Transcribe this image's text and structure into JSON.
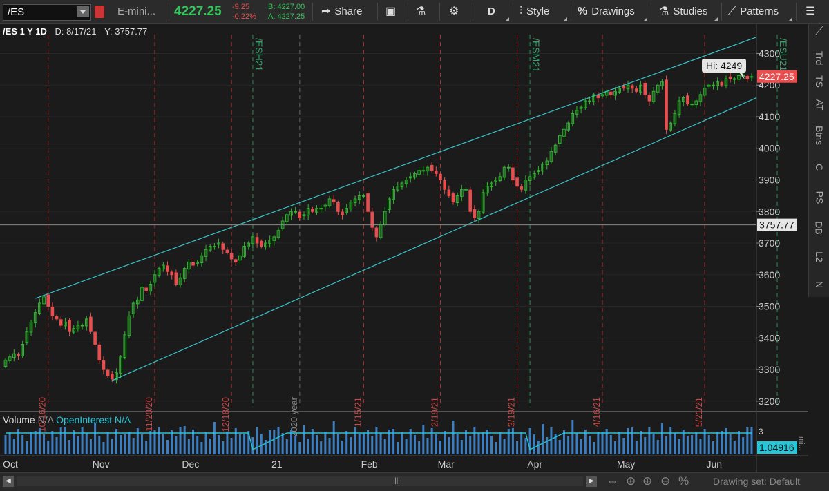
{
  "toolbar": {
    "symbol": "/ES",
    "description": "E-mini...",
    "last_price": "4227.25",
    "change": "-9.25",
    "change_pct": "-0.22%",
    "bid": "B: 4227.00",
    "ask": "A: 4227.25",
    "share_label": "Share",
    "period_label": "D",
    "style_label": "Style",
    "drawings_label": "Drawings",
    "studies_label": "Studies",
    "patterns_label": "Patterns"
  },
  "chart_header": {
    "title": "/ES 1 Y 1D",
    "date": "D: 8/17/21",
    "value": "Y: 3757.77"
  },
  "colors": {
    "up": "#2eb82e",
    "down": "#e84e4e",
    "channel": "#3ac3c7",
    "price_tag": "#e84e4e",
    "volume": "#3b7ec2",
    "open_interest": "#25c6d8"
  },
  "chart_data": {
    "type": "candlestick",
    "y_ticks": [
      "3200",
      "3300",
      "3400",
      "3500",
      "3600",
      "3700",
      "3800",
      "3900",
      "4000",
      "4100",
      "4200",
      "4300"
    ],
    "ylim": [
      3180,
      4360
    ],
    "x_labels": [
      "Oct",
      "Nov",
      "Dec",
      "21",
      "Feb",
      "Mar",
      "Apr",
      "May",
      "Jun"
    ],
    "date_labels": [
      "10/16/20",
      "11/20/20",
      "12/18/20",
      "1/15/21",
      "2/19/21",
      "3/19/21",
      "4/16/21",
      "5/21/21"
    ],
    "expiry_labels": [
      "/ESH21",
      "/ESM21",
      "/ESU21"
    ],
    "year_label": "2020 year",
    "crosshair_value": "3757.77",
    "hi_label": "Hi: 4249",
    "last_price_tag": "4227.25",
    "oi_value": "1.04916",
    "lower_axis_top": "3",
    "lower_axis_note": "mi...",
    "closes": [
      3330,
      3340,
      3350,
      3345,
      3380,
      3420,
      3450,
      3480,
      3510,
      3530,
      3500,
      3470,
      3460,
      3440,
      3450,
      3420,
      3430,
      3440,
      3440,
      3460,
      3420,
      3380,
      3330,
      3300,
      3280,
      3270,
      3290,
      3340,
      3410,
      3470,
      3510,
      3520,
      3560,
      3550,
      3570,
      3600,
      3620,
      3630,
      3610,
      3600,
      3570,
      3590,
      3620,
      3640,
      3630,
      3640,
      3660,
      3680,
      3690,
      3690,
      3700,
      3680,
      3670,
      3650,
      3640,
      3660,
      3690,
      3700,
      3720,
      3700,
      3690,
      3700,
      3710,
      3720,
      3740,
      3770,
      3790,
      3800,
      3800,
      3780,
      3790,
      3810,
      3800,
      3810,
      3810,
      3820,
      3840,
      3830,
      3800,
      3790,
      3810,
      3830,
      3840,
      3850,
      3850,
      3800,
      3750,
      3720,
      3760,
      3800,
      3840,
      3870,
      3880,
      3890,
      3900,
      3910,
      3920,
      3930,
      3930,
      3940,
      3930,
      3920,
      3900,
      3870,
      3850,
      3830,
      3850,
      3870,
      3870,
      3800,
      3780,
      3800,
      3860,
      3880,
      3890,
      3900,
      3910,
      3940,
      3940,
      3900,
      3880,
      3870,
      3900,
      3910,
      3920,
      3930,
      3950,
      3960,
      3990,
      4010,
      4040,
      4060,
      4080,
      4110,
      4120,
      4130,
      4150,
      4150,
      4170,
      4160,
      4170,
      4180,
      4170,
      4180,
      4190,
      4190,
      4200,
      4190,
      4180,
      4200,
      4170,
      4150,
      4180,
      4200,
      4210,
      4060,
      4080,
      4110,
      4150,
      4160,
      4140,
      4140,
      4150,
      4170,
      4190,
      4200,
      4200,
      4210,
      4200,
      4220,
      4220,
      4220,
      4230,
      4230,
      4220,
      4227
    ]
  }
}
